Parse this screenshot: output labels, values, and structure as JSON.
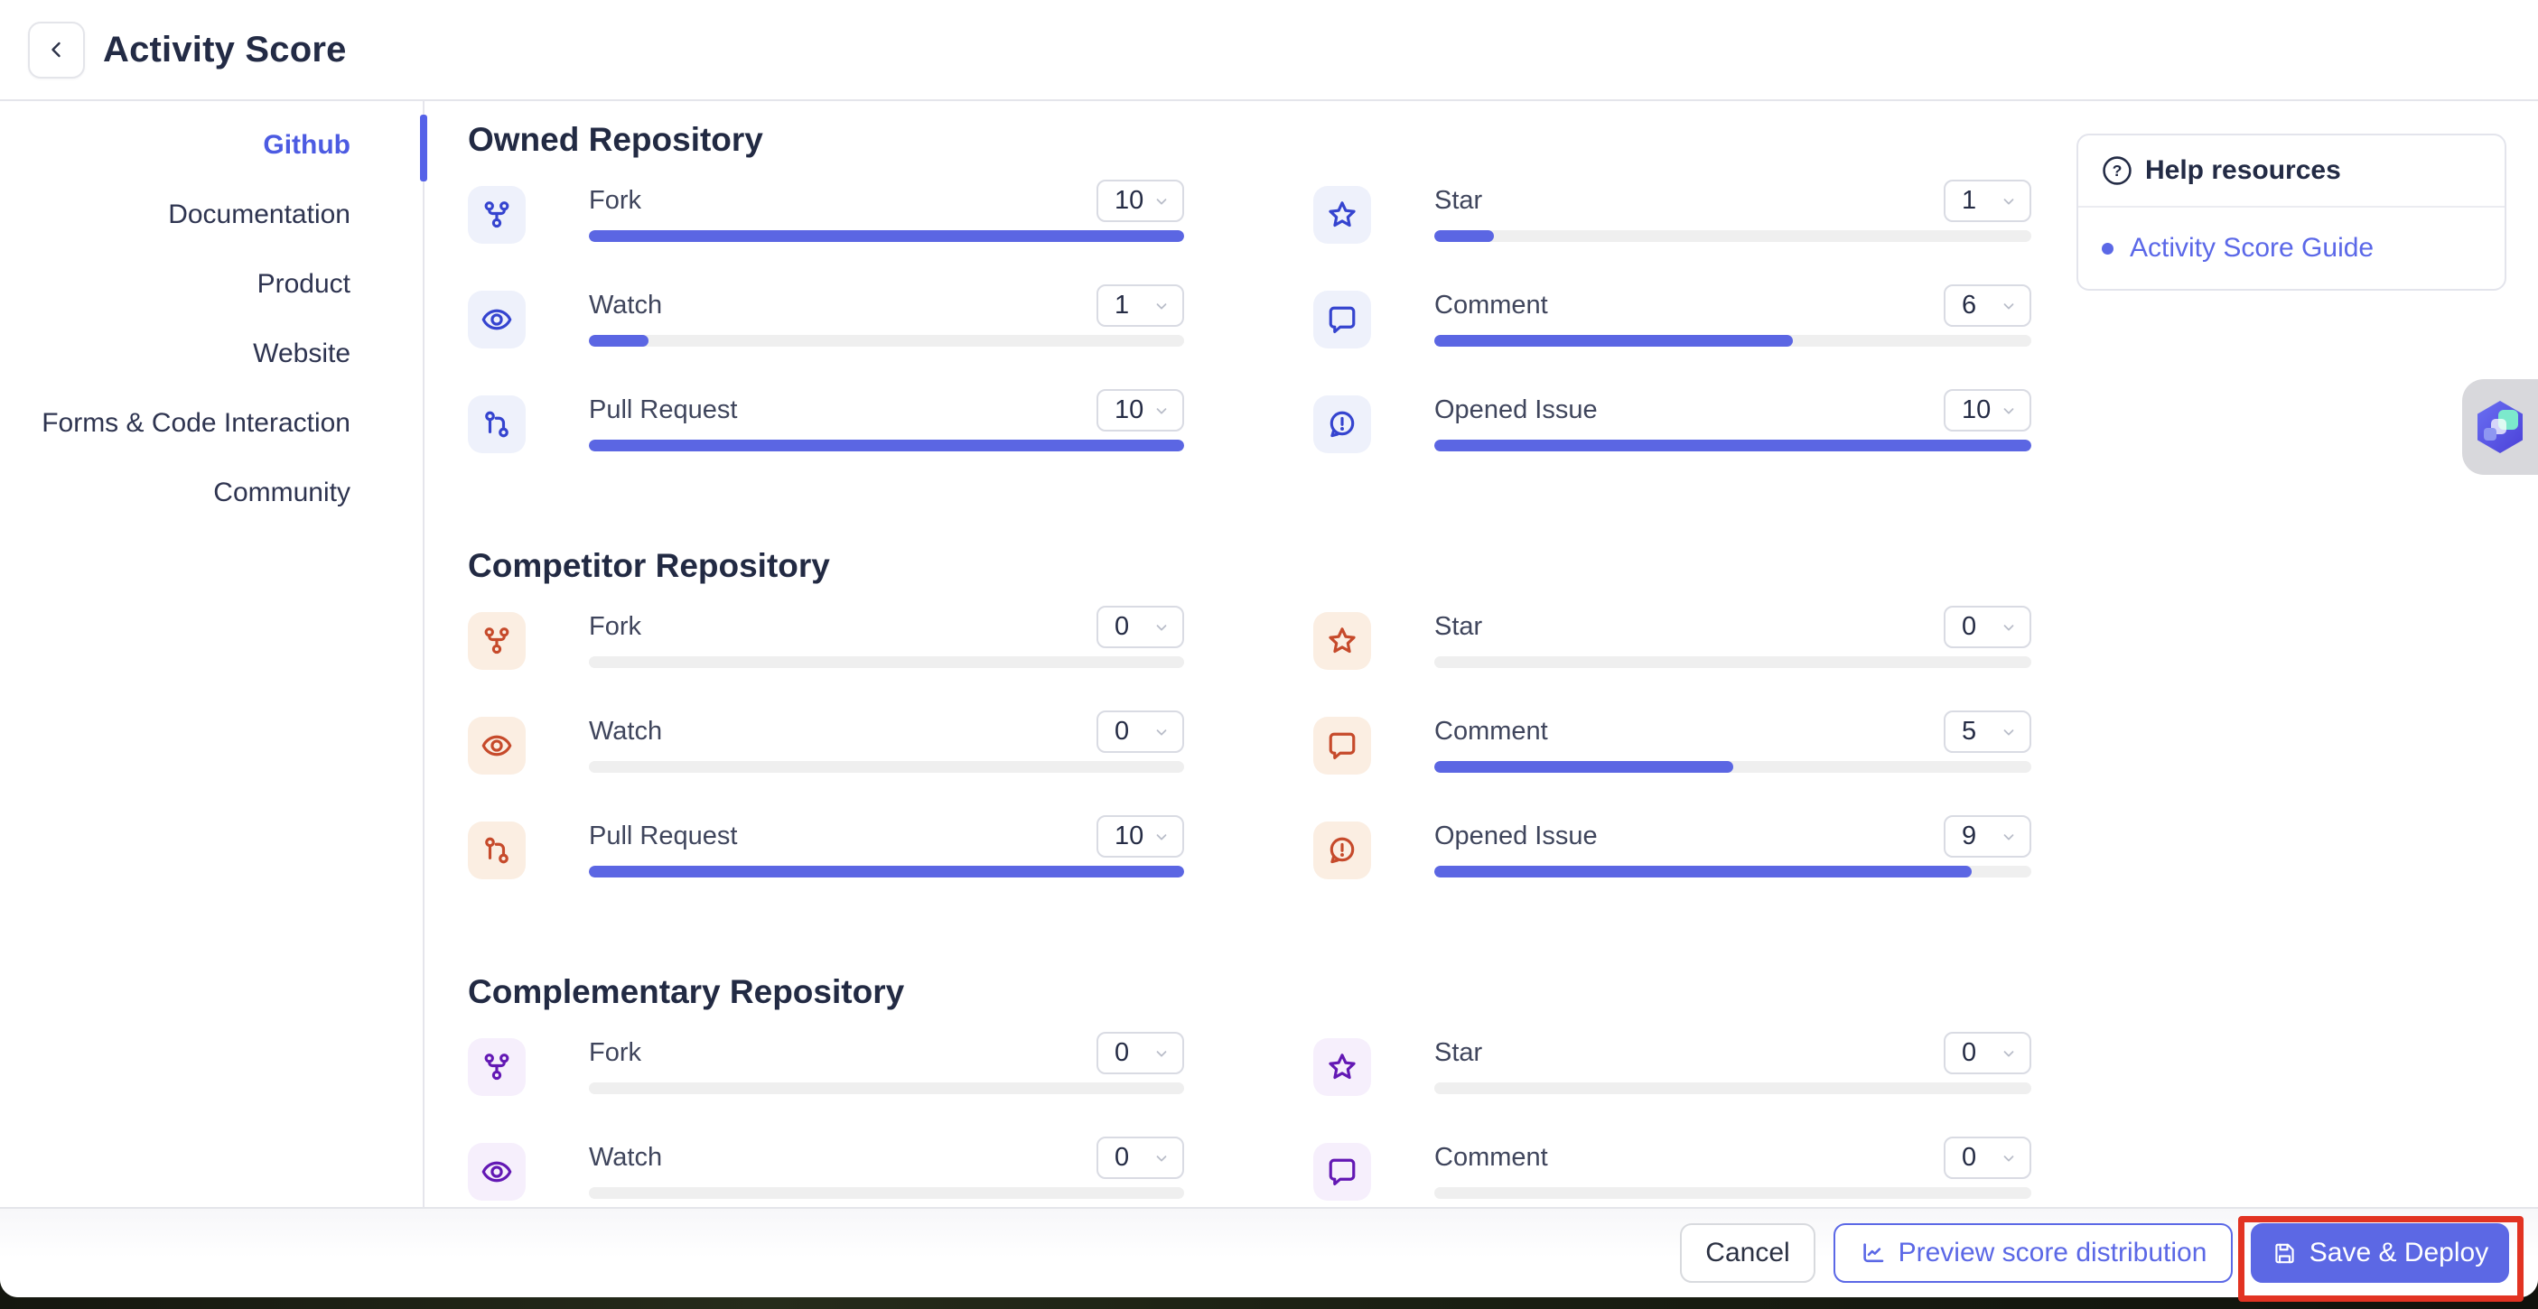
{
  "header": {
    "title": "Activity Score",
    "back_icon": "chevron-left-icon"
  },
  "sidebar": {
    "items": [
      {
        "label": "Github",
        "active": true
      },
      {
        "label": "Documentation",
        "active": false
      },
      {
        "label": "Product",
        "active": false
      },
      {
        "label": "Website",
        "active": false
      },
      {
        "label": "Forms & Code Interaction",
        "active": false
      },
      {
        "label": "Community",
        "active": false
      }
    ]
  },
  "scale_max": 10,
  "sections": [
    {
      "title": "Owned Repository",
      "theme": "indigo",
      "left": [
        {
          "icon": "fork-icon",
          "label": "Fork",
          "value": "10"
        },
        {
          "icon": "watch-icon",
          "label": "Watch",
          "value": "1"
        },
        {
          "icon": "pull-request-icon",
          "label": "Pull Request",
          "value": "10"
        }
      ],
      "right": [
        {
          "icon": "star-icon",
          "label": "Star",
          "value": "1"
        },
        {
          "icon": "comment-icon",
          "label": "Comment",
          "value": "6"
        },
        {
          "icon": "opened-issue-icon",
          "label": "Opened Issue",
          "value": "10"
        }
      ]
    },
    {
      "title": "Competitor Repository",
      "theme": "orange",
      "left": [
        {
          "icon": "fork-icon",
          "label": "Fork",
          "value": "0"
        },
        {
          "icon": "watch-icon",
          "label": "Watch",
          "value": "0"
        },
        {
          "icon": "pull-request-icon",
          "label": "Pull Request",
          "value": "10"
        }
      ],
      "right": [
        {
          "icon": "star-icon",
          "label": "Star",
          "value": "0"
        },
        {
          "icon": "comment-icon",
          "label": "Comment",
          "value": "5"
        },
        {
          "icon": "opened-issue-icon",
          "label": "Opened Issue",
          "value": "9"
        }
      ]
    },
    {
      "title": "Complementary Repository",
      "theme": "purple",
      "left": [
        {
          "icon": "fork-icon",
          "label": "Fork",
          "value": "0"
        },
        {
          "icon": "watch-icon",
          "label": "Watch",
          "value": "0"
        }
      ],
      "right": [
        {
          "icon": "star-icon",
          "label": "Star",
          "value": "0"
        },
        {
          "icon": "comment-icon",
          "label": "Comment",
          "value": "0"
        }
      ]
    }
  ],
  "help": {
    "icon": "question-circle-icon",
    "title": "Help resources",
    "links": [
      "Activity Score Guide"
    ]
  },
  "footer": {
    "cancel_label": "Cancel",
    "preview_label": "Preview score distribution",
    "preview_icon": "chart-line-icon",
    "save_label": "Save & Deploy",
    "save_icon": "save-icon"
  },
  "colors": {
    "accent": "#5b66e3",
    "sidebar_active": "#4c5be2",
    "indigo_icon": "#3544cf",
    "indigo_bg": "#eef1fb",
    "orange_icon": "#c64a2b",
    "orange_bg": "#fbeee2",
    "purple_icon": "#6318b4",
    "purple_bg": "#f6effc",
    "track": "#efefef",
    "title_text": "#232b45",
    "annotation_red": "#e23322"
  },
  "annotation": {
    "highlighted_element": "save-deploy-button"
  }
}
